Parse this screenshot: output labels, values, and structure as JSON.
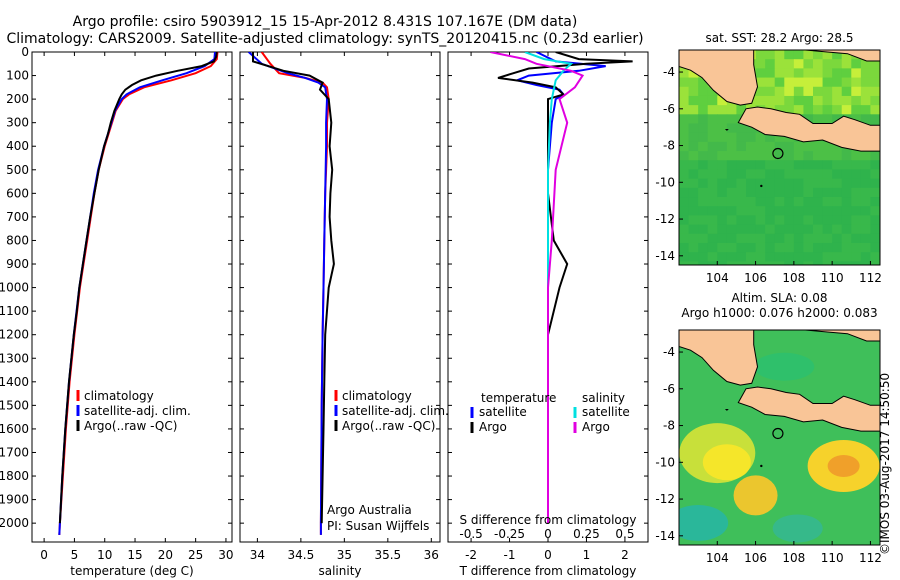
{
  "header": {
    "title_line1": "Argo profile: csiro 5903912_15 15-Apr-2012 8.431S 107.167E (DM data)",
    "title_line2": "Climatology: CARS2009. Satellite-adjusted climatology: synTS_20120415.nc (0.23d earlier)"
  },
  "colors": {
    "climatology": "#ff0000",
    "satellite_adj": "#0000ff",
    "argo": "#000000",
    "satellite_salinity": "#00e0e0",
    "argo_salinity": "#e000e0",
    "land": "#f9c597"
  },
  "chart_data": [
    {
      "id": "temperature",
      "type": "line",
      "xlabel": "temperature (deg C)",
      "ylabel": "",
      "xlim": [
        -2,
        31
      ],
      "ylim": [
        2080,
        0
      ],
      "xticks": [
        0,
        5,
        10,
        15,
        20,
        25,
        30
      ],
      "yticks": [
        0,
        100,
        200,
        300,
        400,
        500,
        600,
        700,
        800,
        900,
        1000,
        1100,
        1200,
        1300,
        1400,
        1500,
        1600,
        1700,
        1800,
        1900,
        2000
      ],
      "legend": [
        "climatology",
        "satellite-adj. clim.",
        "Argo(..raw -QC)"
      ],
      "series": [
        {
          "name": "climatology",
          "color": "#ff0000",
          "depth": [
            0,
            30,
            60,
            90,
            120,
            150,
            180,
            200,
            250,
            300,
            400,
            500,
            600,
            700,
            800,
            900,
            1000,
            1200,
            1400,
            1600,
            1800,
            2000,
            2050
          ],
          "values": [
            28.6,
            28.5,
            27.5,
            25.0,
            21.0,
            16.5,
            14.0,
            13.0,
            11.8,
            11.2,
            10.0,
            9.0,
            8.3,
            7.7,
            7.1,
            6.5,
            5.9,
            5.0,
            4.2,
            3.6,
            3.1,
            2.6,
            2.5
          ]
        },
        {
          "name": "satellite-adj. clim.",
          "color": "#0000ff",
          "depth": [
            0,
            30,
            60,
            90,
            120,
            150,
            180,
            200,
            250,
            300,
            400,
            500,
            600,
            700,
            800,
            900,
            1000,
            1200,
            1400,
            1600,
            1800,
            2000,
            2050
          ],
          "values": [
            28.2,
            28.1,
            26.5,
            23.5,
            19.5,
            15.8,
            13.6,
            12.8,
            11.7,
            11.1,
            9.9,
            8.9,
            8.2,
            7.6,
            7.0,
            6.4,
            5.8,
            4.9,
            4.1,
            3.5,
            3.0,
            2.6,
            2.5
          ]
        },
        {
          "name": "Argo(..raw -QC)",
          "color": "#000000",
          "depth": [
            0,
            20,
            40,
            60,
            80,
            100,
            120,
            140,
            160,
            180,
            200,
            250,
            300,
            350,
            400,
            500,
            600,
            700,
            800,
            900,
            1000,
            1100,
            1200,
            1400,
            1600,
            1800,
            2000
          ],
          "values": [
            28.5,
            28.4,
            28.0,
            26.0,
            22.0,
            18.5,
            16.0,
            14.5,
            13.4,
            12.8,
            12.4,
            11.6,
            11.0,
            10.5,
            9.9,
            9.0,
            8.3,
            7.6,
            7.0,
            6.4,
            5.8,
            5.4,
            4.9,
            4.1,
            3.5,
            3.0,
            2.6
          ]
        }
      ]
    },
    {
      "id": "salinity",
      "type": "line",
      "xlabel": "salinity",
      "ylabel": "",
      "xlim": [
        33.8,
        36.1
      ],
      "ylim": [
        2080,
        0
      ],
      "xticks": [
        34,
        34.5,
        35,
        35.5,
        36
      ],
      "yticks": [
        0,
        100,
        200,
        300,
        400,
        500,
        600,
        700,
        800,
        900,
        1000,
        1100,
        1200,
        1300,
        1400,
        1500,
        1600,
        1700,
        1800,
        1900,
        2000
      ],
      "legend": [
        "climatology",
        "satellite-adj. clim.",
        "Argo(..raw -QC)"
      ],
      "annotation": [
        "Argo Australia",
        "PI: Susan Wijffels"
      ],
      "series": [
        {
          "name": "climatology",
          "color": "#ff0000",
          "depth": [
            0,
            50,
            90,
            110,
            130,
            150,
            200,
            300,
            400,
            600,
            800,
            1000,
            1200,
            1500,
            2000,
            2050
          ],
          "values": [
            34.05,
            34.15,
            34.25,
            34.55,
            34.75,
            34.8,
            34.82,
            34.8,
            34.8,
            34.78,
            34.77,
            34.76,
            34.75,
            34.74,
            34.73,
            34.73
          ]
        },
        {
          "name": "satellite-adj. clim.",
          "color": "#0000ff",
          "depth": [
            0,
            50,
            90,
            110,
            130,
            150,
            200,
            300,
            400,
            600,
            800,
            1000,
            1200,
            1500,
            2000,
            2050
          ],
          "values": [
            33.9,
            34.05,
            34.35,
            34.55,
            34.7,
            34.78,
            34.8,
            34.79,
            34.79,
            34.78,
            34.77,
            34.76,
            34.75,
            34.74,
            34.73,
            34.73
          ]
        },
        {
          "name": "Argo(..raw -QC)",
          "color": "#000000",
          "depth": [
            0,
            40,
            80,
            100,
            130,
            160,
            200,
            300,
            400,
            500,
            600,
            700,
            800,
            900,
            1000,
            1200,
            1400,
            1600,
            1800,
            2000
          ],
          "values": [
            33.95,
            33.95,
            34.3,
            34.6,
            34.75,
            34.72,
            34.82,
            34.85,
            34.83,
            34.86,
            34.84,
            34.83,
            34.85,
            34.88,
            34.82,
            34.78,
            34.77,
            34.76,
            34.75,
            34.74
          ]
        }
      ]
    },
    {
      "id": "difference",
      "type": "line",
      "xlabel": "T difference from climatology",
      "xlabel_top": "S difference from climatology",
      "xlim": [
        -2.6,
        2.6
      ],
      "ylim": [
        2080,
        0
      ],
      "xticks": [
        -2,
        -1,
        0,
        1,
        2
      ],
      "xticks_top_labels": [
        "-0.5",
        "-0.25",
        "0",
        "0.25",
        "0.5"
      ],
      "xticks_top_values": [
        -2,
        -1,
        0,
        1,
        2
      ],
      "yticks": [
        0,
        100,
        200,
        300,
        400,
        500,
        600,
        700,
        800,
        900,
        1000,
        1100,
        1200,
        1300,
        1400,
        1500,
        1600,
        1700,
        1800,
        1900,
        2000
      ],
      "legend_header_left": "temperature",
      "legend_header_right": "salinity",
      "legend": [
        "satellite",
        "Argo",
        "satellite",
        "Argo"
      ],
      "series": [
        {
          "name": "temperature satellite",
          "color": "#0000ff",
          "depth": [
            0,
            40,
            60,
            80,
            100,
            120,
            140,
            160,
            180,
            200,
            300,
            500,
            800,
            1000,
            1500,
            2000
          ],
          "values": [
            -0.3,
            0.2,
            1.5,
            0.8,
            -0.5,
            -0.8,
            -0.3,
            0.3,
            0.4,
            0.2,
            0.1,
            0.0,
            0.0,
            0.0,
            0.0,
            0.0
          ]
        },
        {
          "name": "temperature Argo",
          "color": "#000000",
          "depth": [
            0,
            30,
            40,
            50,
            70,
            90,
            110,
            130,
            150,
            180,
            200,
            300,
            400,
            600,
            800,
            900,
            1000,
            1200,
            1500,
            2000
          ],
          "values": [
            0.2,
            0.8,
            2.2,
            1.0,
            -0.5,
            -0.9,
            -1.3,
            -0.4,
            0.2,
            0.4,
            0.0,
            0.0,
            0.0,
            0.0,
            0.15,
            0.5,
            0.3,
            0.0,
            0.0,
            0.0
          ]
        },
        {
          "name": "salinity satellite",
          "color": "#00e0e0",
          "depth": [
            0,
            30,
            50,
            80,
            100,
            120,
            200,
            300,
            500,
            1000,
            2000
          ],
          "values": [
            -0.6,
            -0.1,
            0.6,
            0.4,
            0.3,
            0.2,
            0.1,
            0.05,
            0.0,
            0.0,
            0.0
          ]
        },
        {
          "name": "salinity Argo",
          "color": "#e000e0",
          "depth": [
            0,
            30,
            50,
            80,
            100,
            150,
            200,
            300,
            500,
            800,
            1000,
            1500,
            2000
          ],
          "values": [
            -1.5,
            -0.6,
            -0.3,
            0.6,
            0.9,
            0.7,
            0.3,
            0.5,
            0.2,
            0.1,
            0.0,
            0.0,
            0.0
          ]
        }
      ]
    },
    {
      "id": "sst_map",
      "type": "heatmap",
      "title": "sat. SST: 28.2  Argo: 28.5",
      "xlim": [
        102,
        112.5
      ],
      "ylim": [
        -14.5,
        -2.8
      ],
      "xticks": [
        104,
        106,
        108,
        110,
        112
      ],
      "yticks": [
        -4,
        -6,
        -8,
        -10,
        -12,
        -14
      ],
      "marker": {
        "lon": 107.167,
        "lat": -8.431
      }
    },
    {
      "id": "sla_map",
      "type": "heatmap",
      "title_line1": "Altim. SLA: 0.08",
      "title_line2": "Argo h1000: 0.076 h2000: 0.083",
      "xlim": [
        102,
        112.5
      ],
      "ylim": [
        -14.5,
        -2.8
      ],
      "xticks": [
        104,
        106,
        108,
        110,
        112
      ],
      "yticks": [
        -4,
        -6,
        -8,
        -10,
        -12,
        -14
      ],
      "marker": {
        "lon": 107.167,
        "lat": -8.431
      }
    }
  ],
  "footer": {
    "stamp": "©IMOS 03-Aug-2017 14:50:50"
  }
}
